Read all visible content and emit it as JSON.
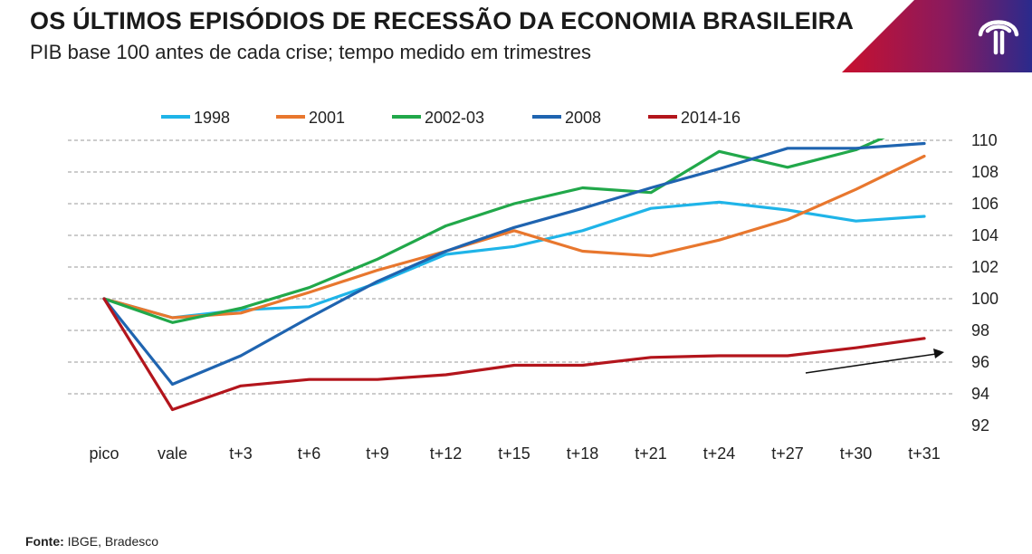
{
  "header": {
    "title": "OS ÚLTIMOS EPISÓDIOS DE RECESSÃO DA ECONOMIA BRASILEIRA",
    "subtitle": "PIB base 100 antes de cada crise; tempo medido em trimestres"
  },
  "logo": {
    "icon": "bradesco-tree-logo-icon",
    "band_colors": [
      "#c8102e",
      "#2a2a8c"
    ]
  },
  "footer": {
    "source_label": "Fonte:",
    "source_text": "IBGE, Bradesco"
  },
  "chart_data": {
    "type": "line",
    "categories": [
      "pico",
      "vale",
      "t+3",
      "t+6",
      "t+9",
      "t+12",
      "t+15",
      "t+18",
      "t+21",
      "t+24",
      "t+27",
      "t+30",
      "t+31"
    ],
    "ylim": [
      92,
      110
    ],
    "yticks": [
      92,
      94,
      96,
      98,
      100,
      102,
      104,
      106,
      108,
      110
    ],
    "y_axis_side": "right",
    "grid": "dashed-horizontal",
    "legend": "top",
    "series": [
      {
        "name": "1998",
        "color": "#1fb4e8",
        "values": [
          100,
          98.8,
          99.3,
          99.5,
          101.0,
          102.8,
          103.3,
          104.3,
          105.7,
          106.1,
          105.6,
          104.9,
          105.2
        ]
      },
      {
        "name": "2001",
        "color": "#e8772e",
        "values": [
          100,
          98.8,
          99.1,
          100.4,
          101.8,
          103.0,
          104.3,
          103.0,
          102.7,
          103.7,
          105.0,
          106.9,
          109.0
        ]
      },
      {
        "name": "2002-03",
        "color": "#21a84a",
        "values": [
          100,
          98.5,
          99.4,
          100.7,
          102.5,
          104.6,
          106.0,
          107.0,
          106.7,
          109.3,
          108.3,
          109.4,
          111.3
        ]
      },
      {
        "name": "2008",
        "color": "#1f64b0",
        "values": [
          100,
          94.6,
          96.4,
          98.8,
          101.1,
          103.0,
          104.5,
          105.7,
          107.0,
          108.2,
          109.5,
          109.5,
          109.8
        ]
      },
      {
        "name": "2014-16",
        "color": "#b3151c",
        "values": [
          100,
          93.0,
          94.5,
          94.9,
          94.9,
          95.2,
          95.8,
          95.8,
          96.3,
          96.4,
          96.4,
          96.9,
          97.5
        ]
      }
    ],
    "annotation": {
      "type": "trend-arrow",
      "color": "#111111"
    }
  }
}
